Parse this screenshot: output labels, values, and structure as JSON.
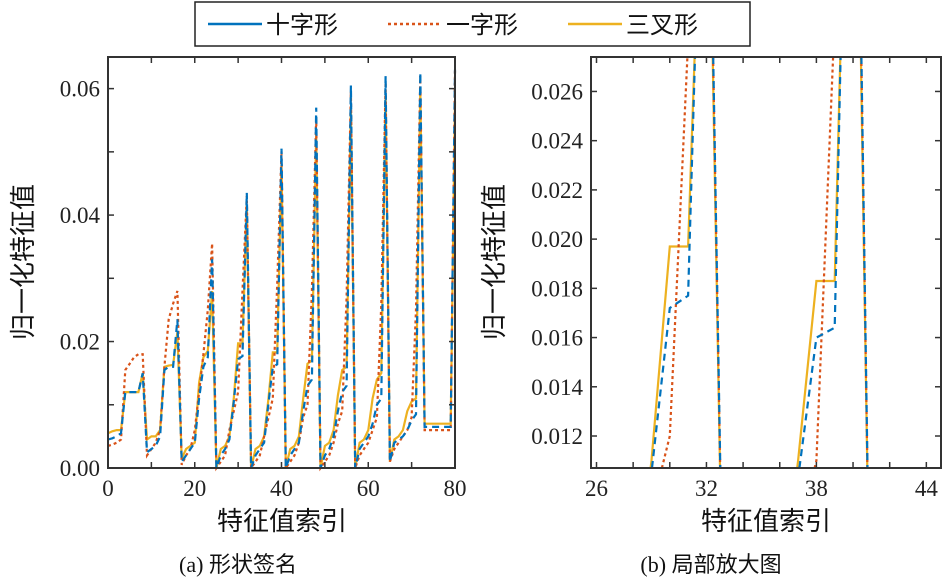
{
  "colors": {
    "cross": "#0072BD",
    "line": "#D95319",
    "trident": "#EDB120"
  },
  "legend": [
    "十字形",
    "一字形",
    "三叉形"
  ],
  "chart_data": [
    {
      "type": "line",
      "caption": "(a) 形状签名",
      "xlabel": "特征值索引",
      "ylabel": "归一化特征值",
      "xlim": [
        0,
        80
      ],
      "ylim": [
        0,
        0.065
      ],
      "xticks": [
        0,
        20,
        40,
        60,
        80
      ],
      "xtick_labels": [
        "0",
        "20",
        "40",
        "60",
        "80"
      ],
      "yticks": [
        0,
        0.02,
        0.04,
        0.06
      ],
      "ytick_labels": [
        "0.00",
        "0.02",
        "0.04",
        "0.06"
      ],
      "x_minor_step": 10,
      "y_minor_step": 0.01
    },
    {
      "type": "line",
      "caption": "(b) 局部放大图",
      "xlabel": "特征值索引",
      "ylabel": "归一化特征值",
      "xlim": [
        25.7,
        44.8
      ],
      "ylim": [
        0.0107,
        0.0274
      ],
      "xticks": [
        26,
        32,
        38,
        44
      ],
      "xtick_labels": [
        "26",
        "32",
        "38",
        "44"
      ],
      "yticks": [
        0.012,
        0.014,
        0.016,
        0.018,
        0.02,
        0.022,
        0.024,
        0.026
      ],
      "ytick_labels": [
        "0.012",
        "0.014",
        "0.016",
        "0.018",
        "0.020",
        "0.022",
        "0.024",
        "0.026"
      ],
      "x_minor_step": 2,
      "y_minor_step": 0.002
    }
  ],
  "series": [
    {
      "name": "十字形",
      "style": "dashed",
      "values": [
        0.0045,
        0.0047,
        0.005,
        0.0055,
        0.012,
        0.012,
        0.012,
        0.012,
        0.015,
        0.0025,
        0.003,
        0.0035,
        0.005,
        0.0155,
        0.016,
        0.016,
        0.0235,
        0.001,
        0.002,
        0.003,
        0.004,
        0.011,
        0.016,
        0.0175,
        0.033,
        0.0,
        0.002,
        0.003,
        0.0045,
        0.0105,
        0.0172,
        0.0177,
        0.0435,
        0.0,
        0.002,
        0.003,
        0.004,
        0.0103,
        0.016,
        0.0164,
        0.0505,
        0.0,
        0.002,
        0.003,
        0.004,
        0.009,
        0.013,
        0.014,
        0.057,
        0.0,
        0.002,
        0.003,
        0.005,
        0.009,
        0.012,
        0.013,
        0.0605,
        0.0,
        0.003,
        0.004,
        0.005,
        0.007,
        0.01,
        0.011,
        0.062,
        0.001,
        0.004,
        0.0045,
        0.005,
        0.006,
        0.0075,
        0.0085,
        0.0625,
        0.0065,
        0.0065,
        0.0065,
        0.0065,
        0.0065,
        0.0065,
        0.0065,
        0.063
      ]
    },
    {
      "name": "一字形",
      "style": "dotted",
      "values": [
        0.0035,
        0.0037,
        0.004,
        0.0045,
        0.0155,
        0.0165,
        0.0175,
        0.018,
        0.018,
        0.002,
        0.003,
        0.004,
        0.006,
        0.016,
        0.0235,
        0.026,
        0.028,
        0.0005,
        0.002,
        0.003,
        0.006,
        0.012,
        0.018,
        0.025,
        0.0355,
        0.0,
        0.001,
        0.002,
        0.006,
        0.009,
        0.012,
        0.028,
        0.043,
        0.0,
        0.001,
        0.002,
        0.005,
        0.008,
        0.011,
        0.029,
        0.05,
        0.0,
        0.001,
        0.002,
        0.004,
        0.008,
        0.01,
        0.028,
        0.0555,
        0.0,
        0.001,
        0.002,
        0.004,
        0.007,
        0.009,
        0.027,
        0.0595,
        0.0,
        0.002,
        0.003,
        0.004,
        0.006,
        0.008,
        0.026,
        0.061,
        0.001,
        0.003,
        0.004,
        0.005,
        0.006,
        0.008,
        0.025,
        0.062,
        0.006,
        0.006,
        0.006,
        0.006,
        0.006,
        0.006,
        0.006,
        0.063
      ]
    },
    {
      "name": "三叉形",
      "style": "solid",
      "values": [
        0.0055,
        0.0058,
        0.006,
        0.006,
        0.012,
        0.012,
        0.012,
        0.012,
        0.015,
        0.0045,
        0.005,
        0.005,
        0.006,
        0.016,
        0.0162,
        0.0163,
        0.0215,
        0.0015,
        0.003,
        0.0035,
        0.004,
        0.0135,
        0.0175,
        0.0185,
        0.028,
        0.0,
        0.003,
        0.0035,
        0.005,
        0.011,
        0.0197,
        0.0197,
        0.0415,
        0.0,
        0.003,
        0.0035,
        0.005,
        0.011,
        0.0183,
        0.0183,
        0.048,
        0.0,
        0.003,
        0.0035,
        0.005,
        0.011,
        0.0165,
        0.017,
        0.053,
        0.0,
        0.0035,
        0.004,
        0.006,
        0.0115,
        0.0155,
        0.016,
        0.057,
        0.0,
        0.004,
        0.0045,
        0.006,
        0.011,
        0.014,
        0.015,
        0.059,
        0.001,
        0.0045,
        0.005,
        0.006,
        0.009,
        0.0105,
        0.011,
        0.06,
        0.007,
        0.007,
        0.007,
        0.007,
        0.007,
        0.007,
        0.007,
        0.058
      ]
    }
  ]
}
